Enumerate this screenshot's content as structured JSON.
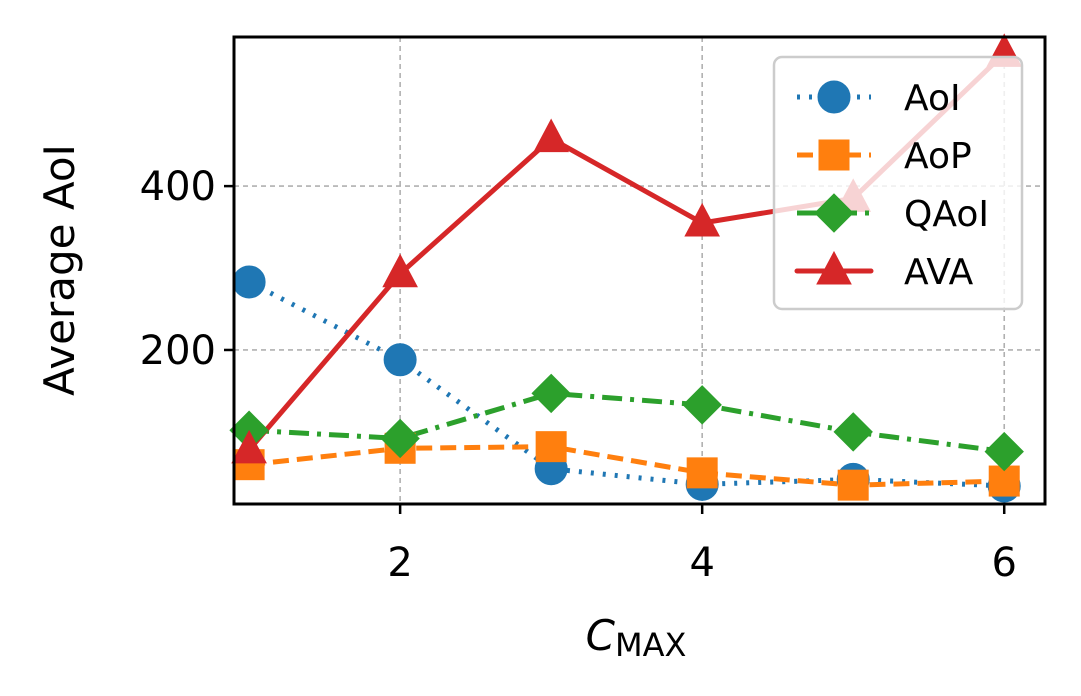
{
  "chart_data": {
    "type": "line",
    "xlabel_main": "C",
    "xlabel_sub": "MAX",
    "ylabel": "Average AoI",
    "xlim": [
      0.9,
      6.27
    ],
    "ylim": [
      12,
      582
    ],
    "xticks": [
      2,
      4,
      6
    ],
    "yticks": [
      200,
      400
    ],
    "grid": true,
    "legend_position": "top-right",
    "x": [
      1,
      2,
      3,
      4,
      5,
      6
    ],
    "series": [
      {
        "name": "AoI",
        "color": "#1f77b4",
        "marker": "circle",
        "linestyle": "dotted",
        "values": [
          283,
          188,
          55,
          36,
          42,
          34
        ]
      },
      {
        "name": "AoP",
        "color": "#ff7f0e",
        "marker": "square",
        "linestyle": "dashed",
        "values": [
          60,
          80,
          82,
          50,
          35,
          40
        ]
      },
      {
        "name": "QAoI",
        "color": "#2ca02c",
        "marker": "diamond",
        "linestyle": "dashdot",
        "values": [
          102,
          92,
          147,
          133,
          100,
          76
        ]
      },
      {
        "name": "AVA",
        "color": "#d62728",
        "marker": "triangle",
        "linestyle": "solid",
        "values": [
          78,
          293,
          458,
          355,
          385,
          562
        ]
      }
    ]
  }
}
